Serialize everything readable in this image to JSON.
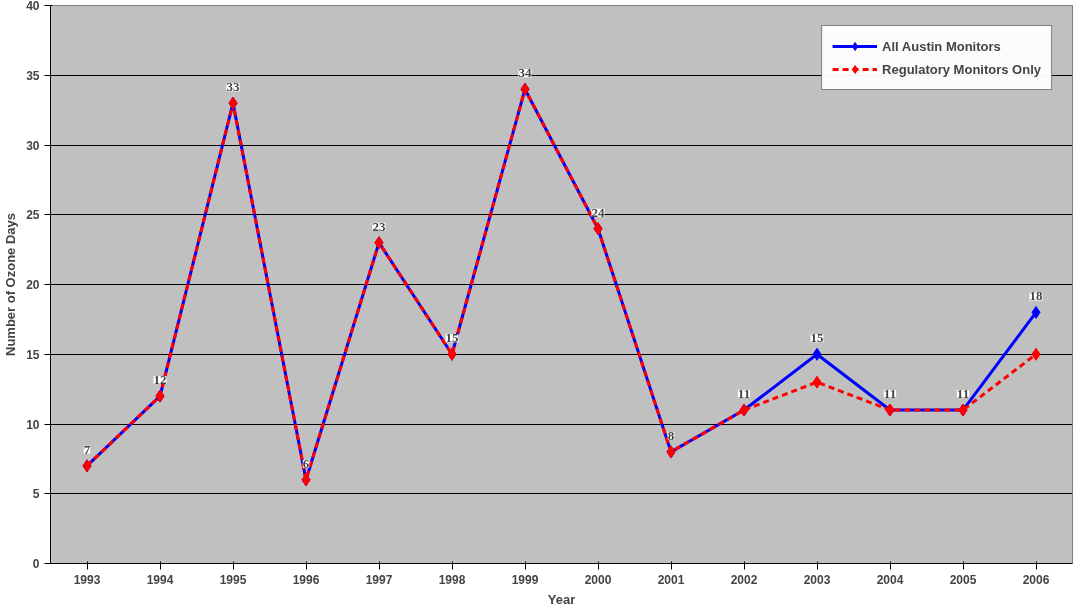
{
  "chart_data": {
    "type": "line",
    "xlabel": "Year",
    "ylabel": "Number of Ozone Days",
    "categories": [
      "1993",
      "1994",
      "1995",
      "1996",
      "1997",
      "1998",
      "1999",
      "2000",
      "2001",
      "2002",
      "2003",
      "2004",
      "2005",
      "2006"
    ],
    "series": [
      {
        "name": "All Austin Monitors",
        "color": "#0000ff",
        "line_style": "solid",
        "values": [
          7,
          12,
          33,
          6,
          23,
          15,
          34,
          24,
          8,
          11,
          15,
          11,
          11,
          18
        ],
        "value_labels": [
          "7",
          "12",
          "33",
          "6",
          "23",
          "15",
          "34",
          "24",
          "8",
          "11",
          "15",
          "11",
          "11",
          "18"
        ]
      },
      {
        "name": "Regulatory Monitors Only",
        "color": "#ff0000",
        "line_style": "dashed",
        "values": [
          7,
          12,
          33,
          6,
          23,
          15,
          34,
          24,
          8,
          11,
          13,
          11,
          11,
          15
        ]
      }
    ],
    "ylim": [
      0,
      40
    ],
    "yticks": [
      0,
      5,
      10,
      15,
      20,
      25,
      30,
      35,
      40
    ],
    "grid": "y",
    "legend": "top right",
    "marker": "diamond"
  }
}
